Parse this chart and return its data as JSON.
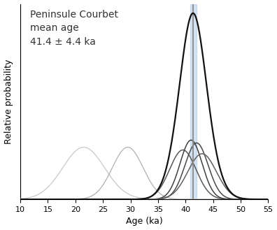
{
  "title_line1": "Peninsule Courbet",
  "title_line2": "mean age",
  "title_line3": "41.4 ± 4.4 ka",
  "xlabel": "Age (ka)",
  "ylabel": "Relative probability",
  "xlim": [
    10,
    55
  ],
  "xticks": [
    10,
    15,
    20,
    25,
    30,
    35,
    40,
    45,
    50,
    55
  ],
  "mean_age": 41.4,
  "vertical_line_color": "#8a8a8a",
  "vertical_band_color": "#b8d0e8",
  "vertical_band_alpha": 0.6,
  "vertical_band_half": 0.55,
  "outlier_curves": [
    {
      "mean": 21.5,
      "sigma": 3.8,
      "color": "#c8c8c8",
      "lw": 0.9
    },
    {
      "mean": 29.5,
      "sigma": 2.8,
      "color": "#b0b0b0",
      "lw": 0.9
    }
  ],
  "main_curves": [
    {
      "mean": 39.5,
      "sigma": 2.4,
      "color": "#585858",
      "lw": 1.1
    },
    {
      "mean": 41.0,
      "sigma": 2.0,
      "color": "#404040",
      "lw": 1.1
    },
    {
      "mean": 42.0,
      "sigma": 2.1,
      "color": "#484848",
      "lw": 1.1
    },
    {
      "mean": 43.0,
      "sigma": 2.6,
      "color": "#606060",
      "lw": 1.1
    }
  ],
  "sum_curve_color": "#111111",
  "sum_curve_lw": 1.6,
  "outlier_scale": 0.28,
  "bg_color": "#ffffff",
  "title_fontsize": 10,
  "axis_fontsize": 9,
  "tick_fontsize": 8
}
